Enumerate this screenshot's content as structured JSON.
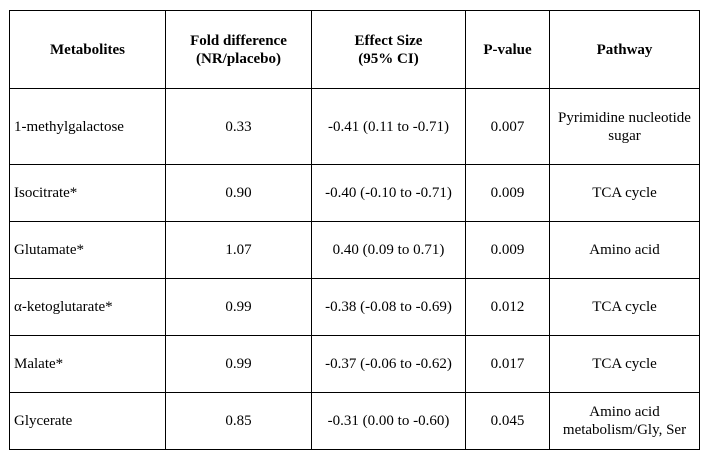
{
  "table": {
    "headers": [
      [
        "Metabolites"
      ],
      [
        "Fold difference",
        "(NR/placebo)"
      ],
      [
        "Effect Size",
        "(95% CI)"
      ],
      [
        "P-value"
      ],
      [
        "Pathway"
      ]
    ],
    "rows": [
      {
        "metabolite": "1-methylgalactose",
        "fold": "0.33",
        "effect": "-0.41 (0.11 to -0.71)",
        "p": "0.007",
        "pathway": [
          "Pyrimidine nucleotide",
          "sugar"
        ]
      },
      {
        "metabolite": "Isocitrate*",
        "fold": "0.90",
        "effect": "-0.40 (-0.10 to -0.71)",
        "p": "0.009",
        "pathway": [
          "TCA cycle"
        ]
      },
      {
        "metabolite": "Glutamate*",
        "fold": "1.07",
        "effect": "0.40 (0.09 to 0.71)",
        "p": "0.009",
        "pathway": [
          "Amino acid"
        ]
      },
      {
        "metabolite": "α-ketoglutarate*",
        "fold": "0.99",
        "effect": "-0.38 (-0.08 to -0.69)",
        "p": "0.012",
        "pathway": [
          "TCA cycle"
        ]
      },
      {
        "metabolite": "Malate*",
        "fold": "0.99",
        "effect": "-0.37 (-0.06 to -0.62)",
        "p": "0.017",
        "pathway": [
          "TCA cycle"
        ]
      },
      {
        "metabolite": "Glycerate",
        "fold": "0.85",
        "effect": "-0.31 (0.00 to -0.60)",
        "p": "0.045",
        "pathway": [
          "Amino acid",
          "metabolism/Gly, Ser"
        ]
      }
    ]
  }
}
